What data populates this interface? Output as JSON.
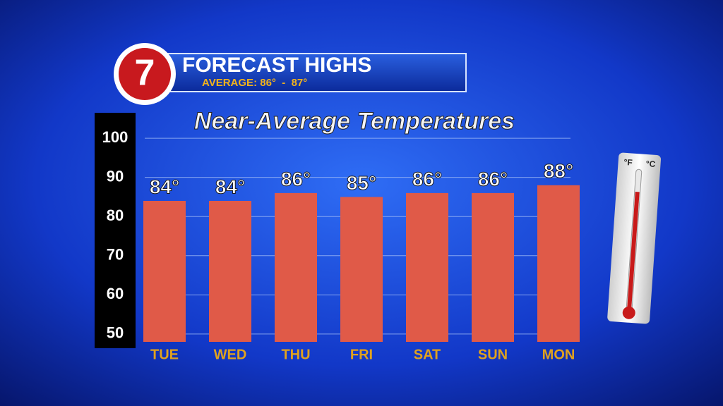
{
  "header": {
    "logo": "7",
    "title": "FORECAST HIGHS",
    "subtitle": "AVERAGE: 86°  -  87°"
  },
  "thermometer": {
    "units": [
      "°F",
      "°C"
    ]
  },
  "chart_data": {
    "type": "bar",
    "title": "Near-Average Temperatures",
    "categories": [
      "TUE",
      "WED",
      "THU",
      "FRI",
      "SAT",
      "SUN",
      "MON"
    ],
    "values": [
      84,
      84,
      86,
      85,
      86,
      86,
      88
    ],
    "value_labels": [
      "84°",
      "84°",
      "86°",
      "85°",
      "86°",
      "86°",
      "88°"
    ],
    "color": "#e05a48",
    "ylim": [
      48,
      102
    ],
    "yticks": [
      50,
      60,
      70,
      80,
      90,
      100
    ],
    "grid": true
  }
}
